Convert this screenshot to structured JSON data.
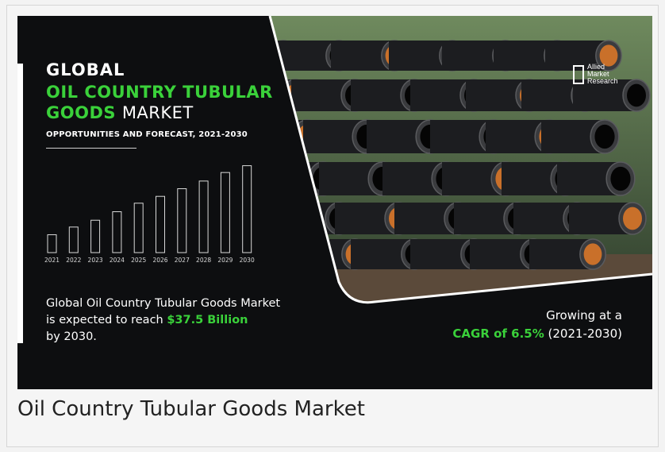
{
  "banner": {
    "title_line1": "GLOBAL",
    "title_line2": "OIL COUNTRY TUBULAR",
    "title_line3_green": "GOODS",
    "title_line3_white": "MARKET",
    "subtitle": "OPPORTUNITIES AND FORECAST, 2021-2030",
    "reach_text_1": "Global Oil Country Tubular Goods Market",
    "reach_text_2": "is expected to reach",
    "reach_value": "$37.5 Billion",
    "reach_text_3": "by 2030.",
    "growth_line1": "Growing at a",
    "growth_cagr": "CAGR of 6.5%",
    "growth_period": "(2021-2030)",
    "logo_lines": [
      "Allied",
      "Market",
      "Research"
    ],
    "colors": {
      "accent_green": "#3ad13a",
      "background": "#0d0e10",
      "text": "#ffffff"
    }
  },
  "caption": "Oil Country Tubular Goods Market",
  "chart_data": {
    "type": "bar",
    "categories": [
      "2021",
      "2022",
      "2023",
      "2024",
      "2025",
      "2026",
      "2027",
      "2028",
      "2029",
      "2030"
    ],
    "values": [
      2.1,
      3.0,
      3.8,
      4.8,
      5.8,
      6.6,
      7.5,
      8.4,
      9.4,
      10.2
    ],
    "title": "",
    "xlabel": "",
    "ylabel": "",
    "ylim": [
      0,
      11
    ],
    "grid": false,
    "legend": "none",
    "bar_style": "outline"
  }
}
